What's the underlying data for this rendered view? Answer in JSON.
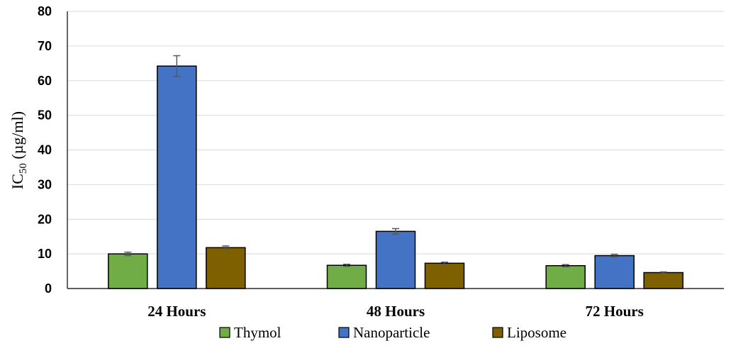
{
  "chart_data": {
    "type": "bar",
    "categories": [
      "24 Hours",
      "48 Hours",
      "72 Hours"
    ],
    "series": [
      {
        "name": "Thymol",
        "color": "#70ad47",
        "values": [
          10.0,
          6.7,
          6.6
        ],
        "errors": [
          0.5,
          0.3,
          0.3
        ]
      },
      {
        "name": "Nanoparticle",
        "color": "#4472c4",
        "values": [
          64.2,
          16.5,
          9.5
        ],
        "errors": [
          3.0,
          0.8,
          0.4
        ]
      },
      {
        "name": "Liposome",
        "color": "#7f6000",
        "values": [
          11.8,
          7.3,
          4.6
        ],
        "errors": [
          0.5,
          0.3,
          0.2
        ]
      }
    ],
    "ylabel_main": "IC",
    "ylabel_sub": "50",
    "ylabel_unit": " (µg/ml)",
    "ylim": [
      0,
      80
    ],
    "yticks": [
      0,
      10,
      20,
      30,
      40,
      50,
      60,
      70,
      80
    ],
    "grid": true,
    "legend_position": "bottom"
  }
}
